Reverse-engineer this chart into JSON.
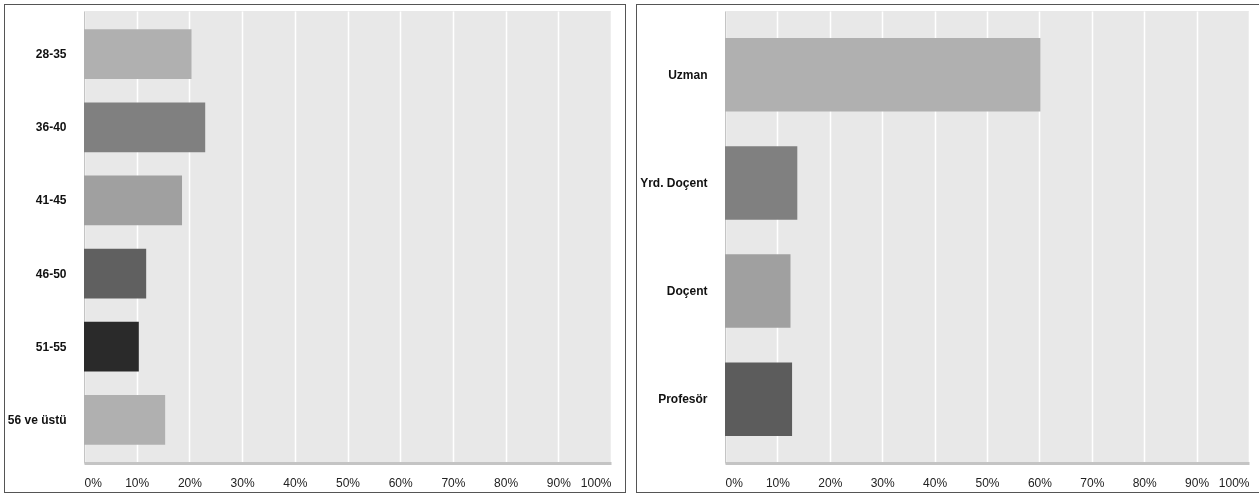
{
  "chart_data": [
    {
      "type": "bar",
      "orientation": "horizontal",
      "categories": [
        "28-35",
        "36-40",
        "41-45",
        "46-50",
        "51-55",
        "56 ve üstü"
      ],
      "values": [
        20.4,
        23.0,
        18.6,
        11.8,
        10.4,
        15.4
      ],
      "colors": [
        "#b0b0b0",
        "#808080",
        "#a0a0a0",
        "#606060",
        "#2a2a2a",
        "#b0b0b0"
      ],
      "xlim": [
        0,
        100
      ],
      "xticks": [
        {
          "value": 0,
          "label": "0%"
        },
        {
          "value": 10,
          "label": "10%"
        },
        {
          "value": 20,
          "label": "20%"
        },
        {
          "value": 30,
          "label": "30%"
        },
        {
          "value": 40,
          "label": "40%"
        },
        {
          "value": 50,
          "label": "50%"
        },
        {
          "value": 60,
          "label": "60%"
        },
        {
          "value": 70,
          "label": "70%"
        },
        {
          "value": 80,
          "label": "80%"
        },
        {
          "value": 90,
          "label": "90%"
        },
        {
          "value": 100,
          "label": "100%"
        }
      ],
      "grid": "x"
    },
    {
      "type": "bar",
      "orientation": "horizontal",
      "categories": [
        "Uzman",
        "Yrd. Doçent",
        "Doçent",
        "Profesör"
      ],
      "values": [
        60.2,
        13.8,
        12.5,
        12.8
      ],
      "colors": [
        "#b0b0b0",
        "#808080",
        "#a0a0a0",
        "#5c5c5c"
      ],
      "xlim": [
        0,
        100
      ],
      "xticks": [
        {
          "value": 0,
          "label": "0%"
        },
        {
          "value": 10,
          "label": "10%"
        },
        {
          "value": 20,
          "label": "20%"
        },
        {
          "value": 30,
          "label": "30%"
        },
        {
          "value": 40,
          "label": "40%"
        },
        {
          "value": 50,
          "label": "50%"
        },
        {
          "value": 60,
          "label": "60%"
        },
        {
          "value": 70,
          "label": "70%"
        },
        {
          "value": 80,
          "label": "80%"
        },
        {
          "value": 90,
          "label": "90%"
        },
        {
          "value": 100,
          "label": "100%"
        }
      ],
      "grid": "x"
    }
  ]
}
